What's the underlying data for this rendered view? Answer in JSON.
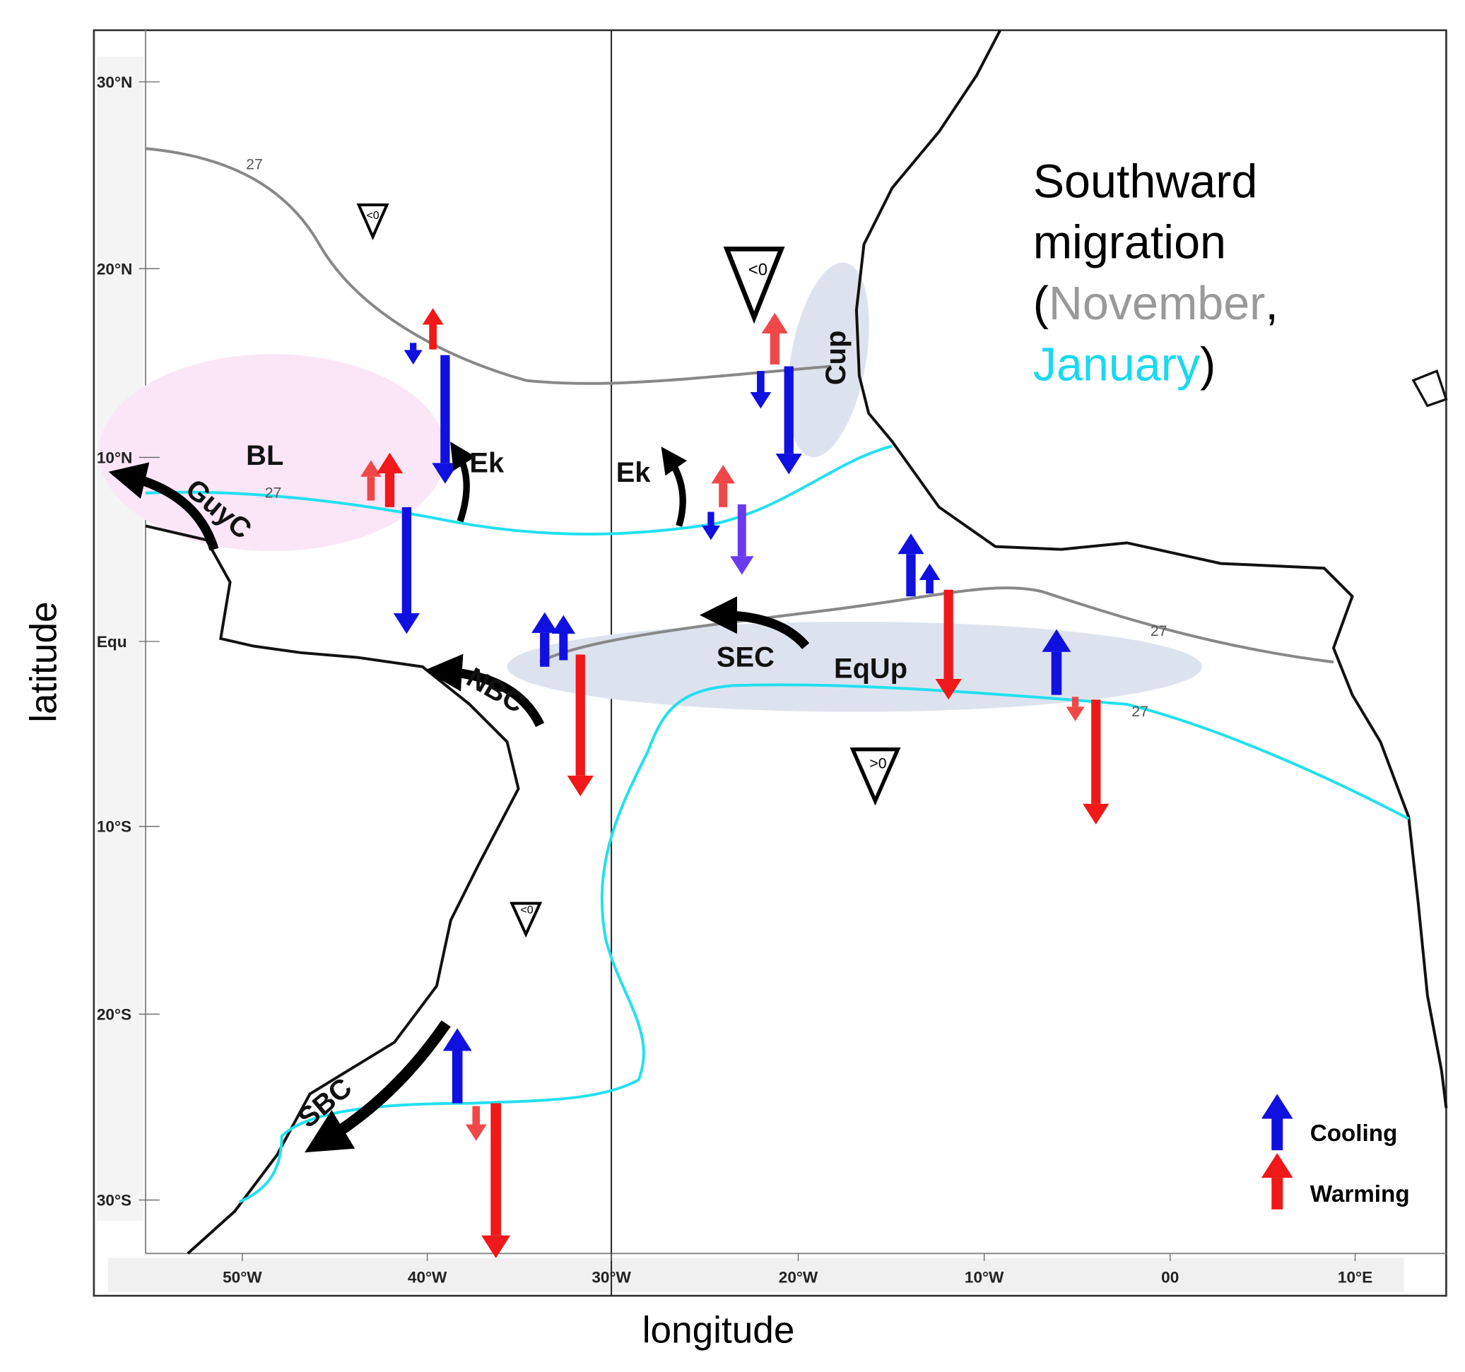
{
  "title": {
    "line1": "Southward",
    "line2": "migration",
    "open": "(",
    "november": "November",
    "comma": ",",
    "january": "January",
    "close": ")"
  },
  "axes": {
    "x_label": "longitude",
    "y_label": "latitude",
    "x_ticks": [
      "50°W",
      "40°W",
      "30°W",
      "20°W",
      "10°W",
      "00",
      "10°E"
    ],
    "y_ticks": [
      "30°N",
      "20°N",
      "10°N",
      "Equ",
      "10°S",
      "20°S",
      "30°S"
    ]
  },
  "regions": [
    "BL",
    "GuyC",
    "Ek",
    "Ek",
    "Cup",
    "SEC",
    "EqUp",
    "NBC",
    "SBC"
  ],
  "contour_labels": [
    "27",
    "27",
    "27",
    "27"
  ],
  "triangles": [
    "<0",
    "<0",
    "<0",
    ">0"
  ],
  "legend": {
    "cooling": "Cooling",
    "warming": "Warming"
  }
}
